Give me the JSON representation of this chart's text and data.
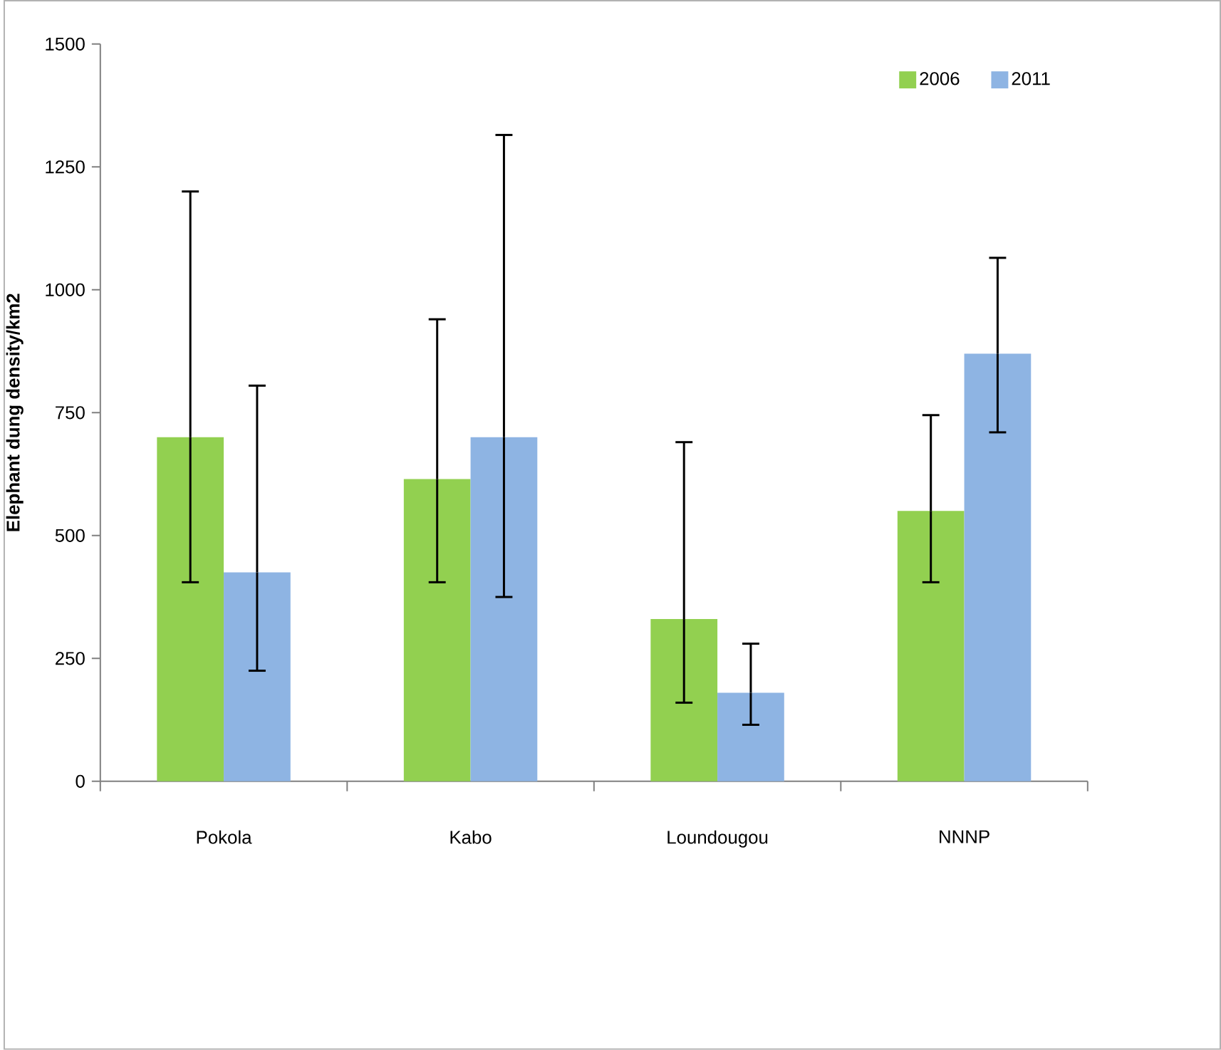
{
  "chart_data": {
    "type": "bar",
    "ylabel": "Elephant dung density/km2",
    "categories": [
      "Pokola",
      "Kabo",
      "Loundougou",
      "NNNP"
    ],
    "series": [
      {
        "name": "2006",
        "color": "#92d050",
        "values": [
          700,
          615,
          330,
          550
        ],
        "errors": [
          [
            405,
            1200
          ],
          [
            405,
            940
          ],
          [
            160,
            690
          ],
          [
            405,
            745
          ]
        ]
      },
      {
        "name": "2011",
        "color": "#8eb4e3",
        "values": [
          425,
          700,
          180,
          870
        ],
        "errors": [
          [
            225,
            805
          ],
          [
            375,
            1315
          ],
          [
            115,
            280
          ],
          [
            710,
            1065
          ]
        ]
      }
    ],
    "ylim": [
      0,
      1500
    ],
    "yticks": [
      0,
      250,
      500,
      750,
      1000,
      1250,
      1500
    ],
    "grid": false,
    "legend": "top right"
  }
}
